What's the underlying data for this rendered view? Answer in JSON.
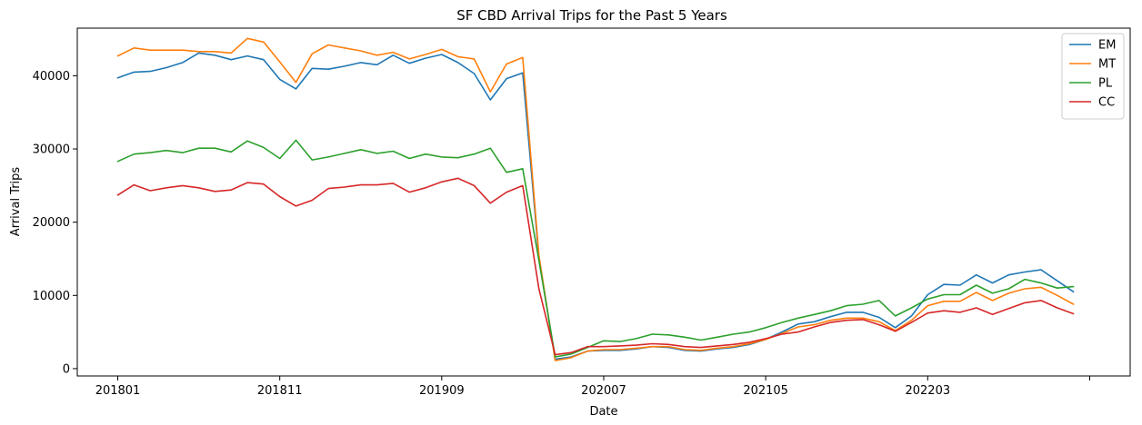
{
  "chart_data": {
    "type": "line",
    "title": "SF CBD Arrival Trips for the Past 5 Years",
    "xlabel": "Date",
    "ylabel": "Arrival Trips",
    "x_tick_labels": [
      "201801",
      "201811",
      "201909",
      "202007",
      "202105",
      "202203",
      ""
    ],
    "x_tick_indices": [
      0,
      10,
      20,
      30,
      40,
      50,
      60
    ],
    "xlim": [
      -2.5,
      62.5
    ],
    "ylim": [
      -1000,
      46500
    ],
    "y_ticks": [
      0,
      10000,
      20000,
      30000,
      40000
    ],
    "grid": false,
    "legend_position": "top-right",
    "series": [
      {
        "name": "EM",
        "color": "#1f77b4",
        "values": [
          39700,
          40500,
          40600,
          41100,
          41800,
          43100,
          42800,
          42200,
          42700,
          42200,
          39500,
          38200,
          41000,
          40900,
          41300,
          41800,
          41500,
          42800,
          41700,
          42400,
          42900,
          41800,
          40300,
          36700,
          39600,
          40400,
          15200,
          1300,
          1600,
          2400,
          2500,
          2500,
          2700,
          3000,
          2900,
          2500,
          2400,
          2700,
          2900,
          3300,
          4000,
          5000,
          6100,
          6400,
          7100,
          7700,
          7700,
          7000,
          5600,
          7200,
          10100,
          11500,
          11400,
          12800,
          11700,
          12800,
          13200,
          13500,
          12000,
          10500
        ]
      },
      {
        "name": "MT",
        "color": "#ff7f0e",
        "values": [
          42700,
          43800,
          43500,
          43500,
          43500,
          43300,
          43300,
          43100,
          45100,
          44600,
          41900,
          39100,
          43000,
          44200,
          43800,
          43400,
          42800,
          43200,
          42300,
          42900,
          43600,
          42600,
          42300,
          37800,
          41600,
          42500,
          15500,
          1100,
          1500,
          2400,
          2600,
          2600,
          2800,
          3000,
          3000,
          2600,
          2500,
          2800,
          3000,
          3400,
          4000,
          4800,
          5700,
          6000,
          6600,
          6900,
          6900,
          6400,
          5200,
          6600,
          8600,
          9200,
          9200,
          10400,
          9300,
          10300,
          10900,
          11100,
          10000,
          8800
        ]
      },
      {
        "name": "PL",
        "color": "#2ca02c",
        "values": [
          28300,
          29300,
          29500,
          29800,
          29500,
          30100,
          30100,
          29600,
          31100,
          30200,
          28700,
          31200,
          28500,
          28900,
          29400,
          29900,
          29400,
          29700,
          28700,
          29300,
          28900,
          28800,
          29300,
          30100,
          26800,
          27300,
          14800,
          1600,
          2000,
          2900,
          3800,
          3700,
          4100,
          4700,
          4600,
          4300,
          3900,
          4300,
          4700,
          5000,
          5600,
          6300,
          6900,
          7400,
          7900,
          8600,
          8800,
          9300,
          7200,
          8300,
          9500,
          10100,
          10100,
          11400,
          10300,
          10900,
          12200,
          11700,
          11000,
          11200
        ]
      },
      {
        "name": "CC",
        "color": "#d62728",
        "values": [
          23700,
          25100,
          24300,
          24700,
          25000,
          24700,
          24200,
          24400,
          25400,
          25200,
          23500,
          22200,
          23000,
          24600,
          24800,
          25100,
          25100,
          25300,
          24100,
          24700,
          25500,
          26000,
          25000,
          22600,
          24100,
          25000,
          10900,
          1900,
          2200,
          3000,
          3000,
          3100,
          3200,
          3400,
          3300,
          3000,
          2900,
          3100,
          3300,
          3600,
          4100,
          4700,
          5000,
          5700,
          6300,
          6600,
          6700,
          6000,
          5100,
          6300,
          7600,
          7900,
          7700,
          8300,
          7400,
          8200,
          9000,
          9300,
          8300,
          7500
        ]
      }
    ]
  }
}
